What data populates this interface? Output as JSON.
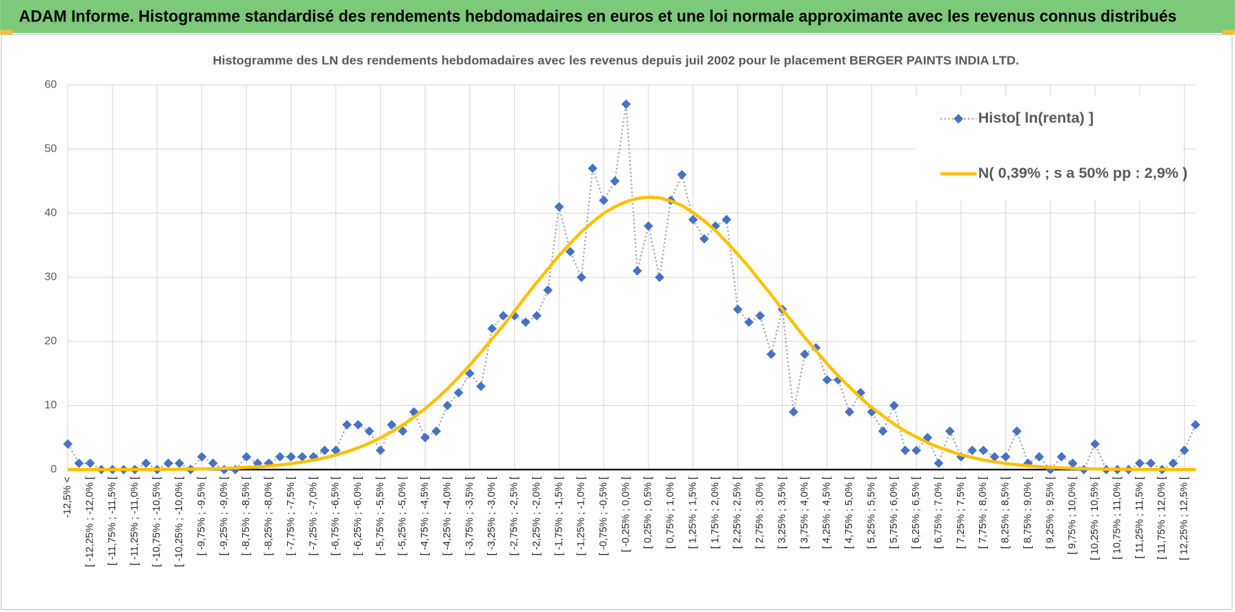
{
  "header": {
    "title": "ADAM Informe. Histogramme standardisé des rendements hebdomadaires en euros et une loi normale approximante avec les revenus connus distribués"
  },
  "chart_data": {
    "type": "line",
    "title": "Histogramme  des LN des rendements hebdomadaires avec les revenus depuis juil 2002 pour le placement BERGER PAINTS INDIA LTD.",
    "categories": [
      "-12,5% <",
      null,
      "[ -12,25% ; -12,0% [",
      null,
      "[ -11,75% ; -11,5% [",
      null,
      "[ -11,25% ; -11,0% [",
      null,
      "[ -10,75% ; -10,5% [",
      null,
      "[ -10,25% ; -10,0% [",
      null,
      "[ -9,75% ; -9,5% [",
      null,
      "[ -9,25% ; -9,0% [",
      null,
      "[ -8,75% ; -8,5% [",
      null,
      "[ -8,25% ; -8,0% [",
      null,
      "[ -7,75% ; -7,5% [",
      null,
      "[ -7,25% ; -7,0% [",
      null,
      "[ -6,75% ; -6,5% [",
      null,
      "[ -6,25% ; -6,0% [",
      null,
      "[ -5,75% ; -5,5% [",
      null,
      "[ -5,25% ; -5,0% [",
      null,
      "[ -4,75% ; -4,5% [",
      null,
      "[ -4,25% ; -4,0% [",
      null,
      "[ -3,75% ; -3,5% [",
      null,
      "[ -3,25% ; -3,0% [",
      null,
      "[ -2,75% ; -2,5% [",
      null,
      "[ -2,25% ; -2,0% [",
      null,
      "[ -1,75% ; -1,5% [",
      null,
      "[ -1,25% ; -1,0% [",
      null,
      "[ -0,75% ; -0,5% [",
      null,
      "[ -0,25% ; 0,0% [",
      null,
      "[ 0,25% ; 0,5% [",
      null,
      "[ 0,75% ; 1,0% [",
      null,
      "[ 1,25% ; 1,5% [",
      null,
      "[ 1,75% ; 2,0% [",
      null,
      "[ 2,25% ; 2,5% [",
      null,
      "[ 2,75% ; 3,0% [",
      null,
      "[ 3,25% ; 3,5% [",
      null,
      "[ 3,75% ; 4,0% [",
      null,
      "[ 4,25% ; 4,5% [",
      null,
      "[ 4,75% ; 5,0% [",
      null,
      "[ 5,25% ; 5,5% [",
      null,
      "[ 5,75% ; 6,0% [",
      null,
      "[ 6,25% ; 6,5% [",
      null,
      "[ 6,75% ; 7,0% [",
      null,
      "[ 7,25% ; 7,5% [",
      null,
      "[ 7,75% ; 8,0% [",
      null,
      "[ 8,25% ; 8,5% [",
      null,
      "[ 8,75% ; 9,0% [",
      null,
      "[ 9,25% ; 9,5% [",
      null,
      "[ 9,75% ; 10,0% [",
      null,
      "[ 10,25% ; 10,5% [",
      null,
      "[ 10,75% ; 11,0% [",
      null,
      "[ 11,25% ; 11,5% [",
      null,
      "[ 11,75% ; 12,0% [",
      null,
      "[ 12,25% ; 12,5% [",
      null
    ],
    "series": [
      {
        "name": "Histo[ ln(renta) ]",
        "color": "#4472c4",
        "line_color": "#a6a6a6",
        "marker": "diamond",
        "values": [
          4,
          1,
          1,
          0,
          0,
          0,
          0,
          1,
          0,
          1,
          1,
          0,
          2,
          1,
          0,
          0,
          2,
          1,
          1,
          2,
          2,
          2,
          2,
          3,
          3,
          7,
          7,
          6,
          3,
          7,
          6,
          9,
          5,
          6,
          10,
          12,
          15,
          13,
          22,
          24,
          24,
          23,
          24,
          28,
          41,
          34,
          30,
          47,
          42,
          45,
          57,
          31,
          38,
          30,
          42,
          46,
          39,
          36,
          38,
          39,
          25,
          23,
          24,
          18,
          25,
          9,
          18,
          19,
          14,
          14,
          9,
          12,
          9,
          6,
          10,
          3,
          3,
          5,
          1,
          6,
          2,
          3,
          3,
          2,
          2,
          6,
          1,
          2,
          0,
          2,
          1,
          0,
          4,
          0,
          0,
          0,
          1,
          1,
          0,
          1,
          3,
          7
        ]
      },
      {
        "name": "N( 0,39% ; s a 50% pp : 2,9% )",
        "color": "#ffc000",
        "marker": "none",
        "values": [
          0,
          0,
          0,
          0,
          0,
          0.01,
          0.02,
          0.02,
          0.03,
          0.04,
          0.06,
          0.08,
          0.11,
          0.15,
          0.2,
          0.26,
          0.34,
          0.44,
          0.57,
          0.73,
          0.93,
          1.18,
          1.48,
          1.84,
          2.28,
          2.8,
          3.41,
          4.11,
          4.94,
          5.9,
          6.97,
          8.18,
          9.52,
          11,
          12.6,
          14.4,
          16.3,
          18.3,
          20.4,
          22.5,
          24.7,
          27,
          29.2,
          31.3,
          33.4,
          35.3,
          37.1,
          38.6,
          40,
          41,
          41.8,
          42.3,
          42.5,
          42.4,
          41.9,
          41.2,
          40.1,
          38.8,
          37.3,
          35.5,
          33.6,
          31.6,
          29.4,
          27.3,
          25,
          22.8,
          20.6,
          18.6,
          16.5,
          14.6,
          12.9,
          11.2,
          9.7,
          8.4,
          7.1,
          6,
          5.1,
          4.2,
          3.5,
          2.9,
          2.3,
          1.9,
          1.5,
          1.2,
          0.96,
          0.76,
          0.59,
          0.46,
          0.35,
          0.27,
          0.2,
          0.15,
          0.11,
          0.08,
          0.06,
          0.05,
          0.03,
          0.02,
          0.02,
          0.01,
          0.01,
          0
        ]
      }
    ],
    "ylim": [
      0,
      60
    ],
    "yticks": [
      0,
      10,
      20,
      30,
      40,
      50,
      60
    ],
    "grid": true,
    "legend": "upper right"
  }
}
